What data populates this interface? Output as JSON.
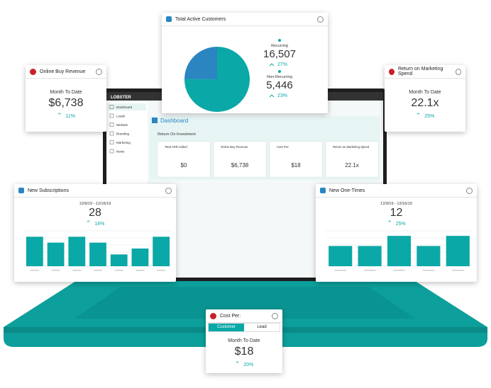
{
  "laptop": {
    "brand": "LOBSTER",
    "app_title": "Dashboard",
    "section": "Return On Investment",
    "nav": [
      "Dashboard",
      "Leads",
      "Website",
      "Branding",
      "Marketing",
      "News"
    ],
    "mini_cards": [
      {
        "title": "Total ARR Added",
        "value": "$0"
      },
      {
        "title": "Online Buy Revenue",
        "value": "$6,738"
      },
      {
        "title": "Cost Per:",
        "value": "$18"
      },
      {
        "title": "Return on Marketing Spend",
        "value": "22.1x"
      }
    ]
  },
  "total_active_customers": {
    "title": "Total Active Customers",
    "chart": {
      "type": "pie",
      "categories": [
        "Recurring",
        "Non-Recurring"
      ],
      "values": [
        16507,
        5446
      ],
      "value_labels": [
        "16,507",
        "5,446"
      ],
      "changes": [
        "27%",
        "23%"
      ],
      "colors": [
        "#0aa8a7",
        "#2a85c1"
      ]
    }
  },
  "online_buy_revenue": {
    "title": "Online Buy Revenue",
    "period": "Month To Date",
    "value": "$6,738",
    "change": "11%"
  },
  "return_on_marketing_spend": {
    "title": "Return on Marketing Spend",
    "period": "Month To Date",
    "value": "22.1x",
    "change": "25%"
  },
  "new_subscriptions": {
    "title": "New Subscriptions",
    "period": "12/9/19 - 12/16/19",
    "value": "28",
    "change": "14%",
    "chart": {
      "type": "bar",
      "values": [
        5,
        4,
        5,
        4,
        2,
        3,
        5
      ],
      "ylim": [
        0,
        6
      ],
      "color": "#0aa8a7"
    }
  },
  "new_one_times": {
    "title": "New One-Times",
    "period": "12/9/19 - 12/16/19",
    "value": "12",
    "change": "25%",
    "chart": {
      "type": "bar",
      "values": [
        2,
        2,
        3,
        2,
        3
      ],
      "ylim": [
        0,
        3.5
      ],
      "color": "#0aa8a7"
    }
  },
  "cost_per": {
    "title": "Cost Per:",
    "tabs": [
      "Customer",
      "Lead"
    ],
    "period": "Month To Date",
    "value": "$18",
    "change": "20%"
  }
}
